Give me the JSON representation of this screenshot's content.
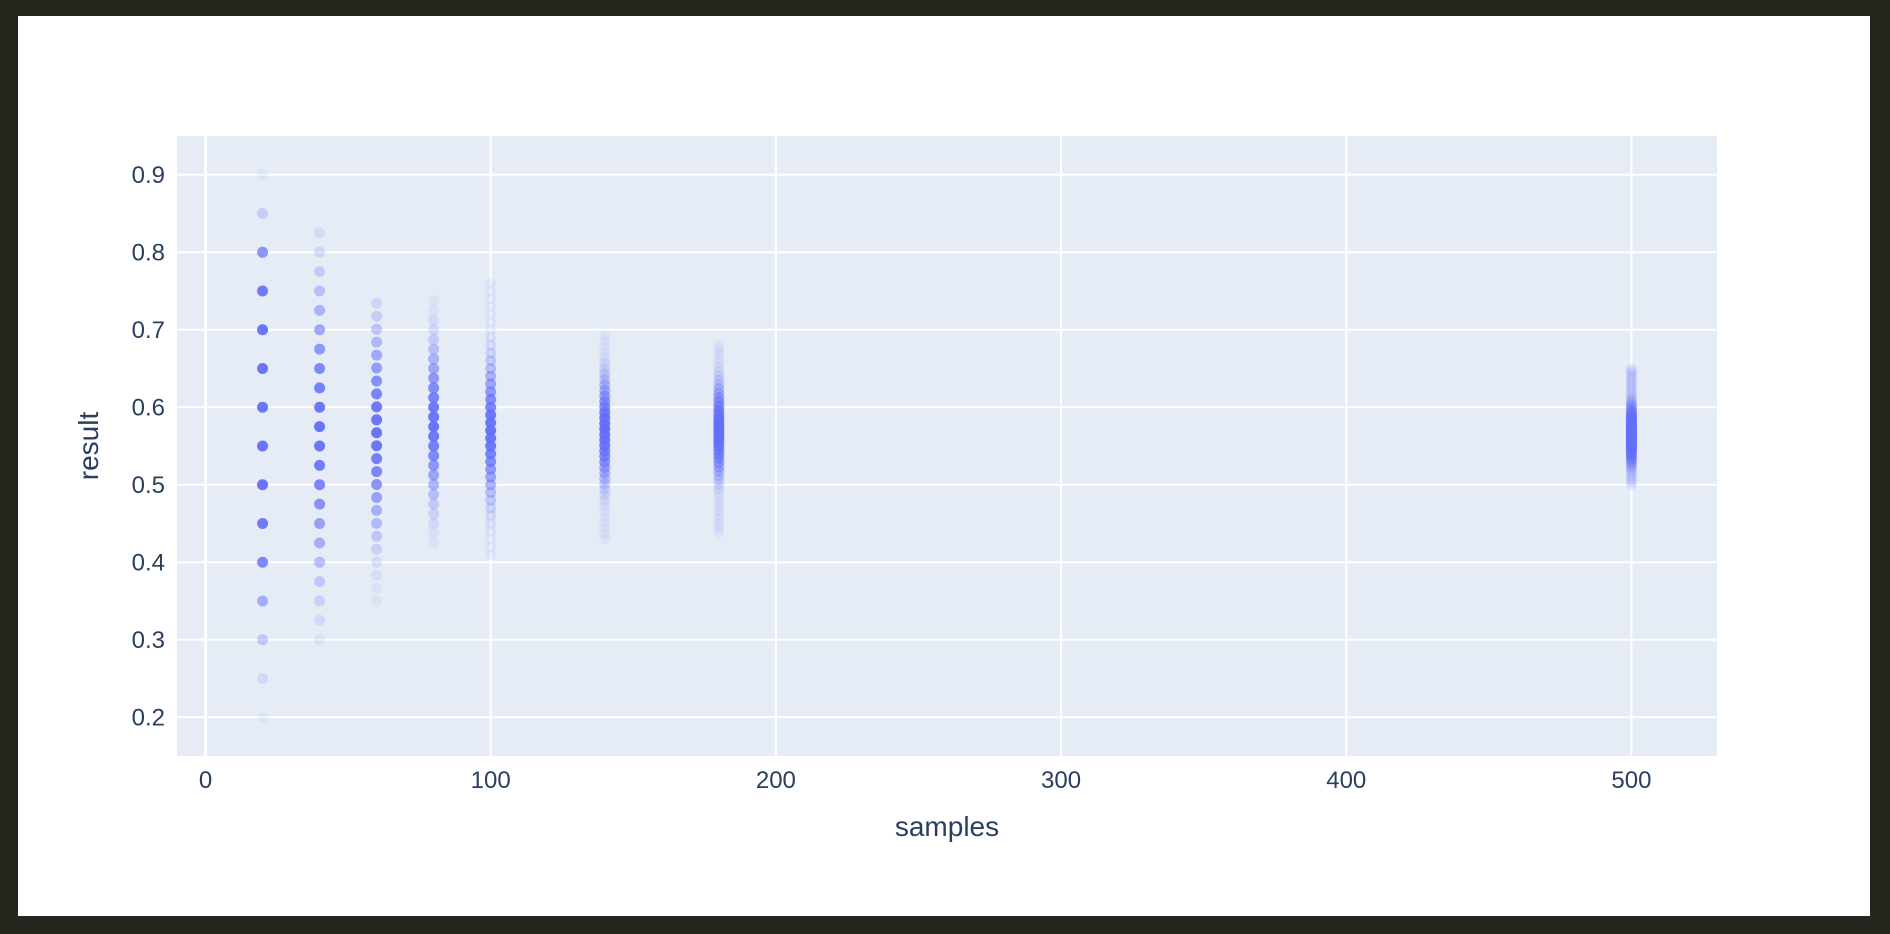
{
  "chart_data": {
    "type": "scatter",
    "title": "",
    "xlabel": "samples",
    "ylabel": "result",
    "xlim": [
      -10,
      530
    ],
    "ylim": [
      0.15,
      0.95
    ],
    "x_ticks": [
      0,
      100,
      200,
      300,
      400,
      500
    ],
    "y_ticks": [
      0.2,
      0.3,
      0.4,
      0.5,
      0.6,
      0.7,
      0.8,
      0.9
    ],
    "grid": true,
    "legend": "none",
    "colors": {
      "marker": "#636efa",
      "plot_bg": "#e5ecf6",
      "grid": "#ffffff",
      "text": "#2a3f5f"
    },
    "series": [
      {
        "x": 20,
        "points": [
          {
            "y": 0.2,
            "w": 0.05
          },
          {
            "y": 0.25,
            "w": 0.15
          },
          {
            "y": 0.3,
            "w": 0.3
          },
          {
            "y": 0.35,
            "w": 0.5
          },
          {
            "y": 0.4,
            "w": 0.8
          },
          {
            "y": 0.45,
            "w": 0.9
          },
          {
            "y": 0.5,
            "w": 1
          },
          {
            "y": 0.55,
            "w": 1
          },
          {
            "y": 0.6,
            "w": 1
          },
          {
            "y": 0.65,
            "w": 1
          },
          {
            "y": 0.7,
            "w": 1
          },
          {
            "y": 0.75,
            "w": 0.9
          },
          {
            "y": 0.8,
            "w": 0.7
          },
          {
            "y": 0.85,
            "w": 0.25
          },
          {
            "y": 0.9,
            "w": 0.05
          }
        ]
      },
      {
        "x": 40,
        "min": 0.3,
        "max": 0.825,
        "step": 0.025,
        "center": 0.57,
        "spread": 0.17
      },
      {
        "x": 60,
        "min": 0.35,
        "max": 0.75,
        "step": 0.0167,
        "center": 0.57,
        "spread": 0.12
      },
      {
        "x": 80,
        "min": 0.425,
        "max": 0.7375,
        "step": 0.0125,
        "center": 0.58,
        "spread": 0.09
      },
      {
        "x": 100,
        "min": 0.41,
        "max": 0.76,
        "step": 0.01,
        "center": 0.57,
        "spread": 0.08
      },
      {
        "x": 140,
        "min": 0.43,
        "max": 0.6929,
        "step": 0.0071,
        "center": 0.57,
        "spread": 0.06
      },
      {
        "x": 180,
        "min": 0.4389,
        "max": 0.6833,
        "step": 0.0056,
        "center": 0.57,
        "spread": 0.05
      },
      {
        "x": 500,
        "min": 0.5,
        "max": 0.65,
        "step": 0.002,
        "center": 0.565,
        "spread": 0.03
      }
    ]
  }
}
